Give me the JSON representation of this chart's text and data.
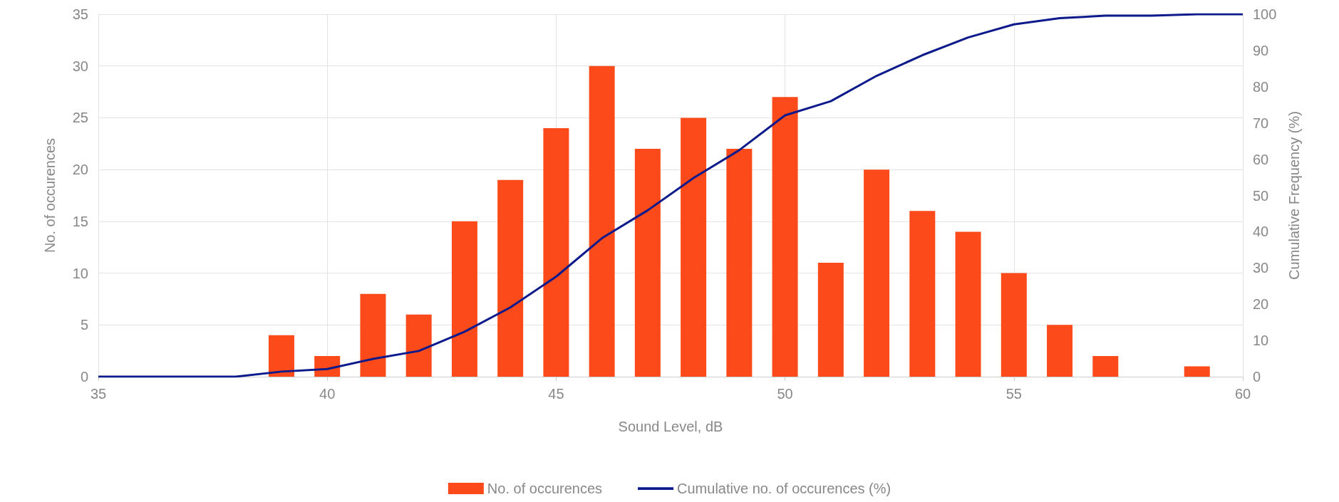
{
  "chart_data": {
    "type": "bar",
    "xlabel": "Sound Level, dB",
    "ylabel": "No. of occurences",
    "y2label": "Cumulative Frequency (%)",
    "series": [
      {
        "name": "No. of occurences",
        "color": "#fc4a1a",
        "x": [
          39,
          40,
          41,
          42,
          43,
          44,
          45,
          46,
          47,
          48,
          49,
          50,
          51,
          52,
          53,
          54,
          55,
          56,
          57,
          58,
          59
        ],
        "values": [
          4,
          2,
          8,
          6,
          15,
          19,
          24,
          30,
          22,
          25,
          22,
          27,
          11,
          20,
          16,
          14,
          10,
          5,
          2,
          0,
          1
        ]
      },
      {
        "name": "Cumulative no. of occurences (%)",
        "type": "line",
        "axis": "y2",
        "color": "#0c1a8c",
        "marker": "none",
        "line_style": "solid",
        "x": [
          35,
          36,
          37,
          38,
          39,
          40,
          41,
          42,
          43,
          44,
          45,
          46,
          47,
          48,
          49,
          50,
          51,
          52,
          53,
          54,
          55,
          56,
          57,
          58,
          59,
          60
        ],
        "values": [
          0,
          0,
          0,
          0,
          1.4,
          2.1,
          4.9,
          7.1,
          12.4,
          19.1,
          27.6,
          38.2,
          45.9,
          54.8,
          62.5,
          72.1,
          76,
          83,
          88.7,
          93.6,
          97.2,
          98.9,
          99.6,
          99.6,
          100,
          100
        ]
      }
    ],
    "xlim": [
      35,
      60
    ],
    "xticks": [
      35,
      40,
      45,
      50,
      55,
      60
    ],
    "ylim": [
      0,
      35
    ],
    "yticks": [
      0,
      5,
      10,
      15,
      20,
      25,
      30,
      35
    ],
    "y2lim": [
      0,
      100
    ],
    "y2ticks": [
      0,
      10,
      20,
      30,
      40,
      50,
      60,
      70,
      80,
      90,
      100
    ],
    "grid": true,
    "legend": "bottom"
  }
}
